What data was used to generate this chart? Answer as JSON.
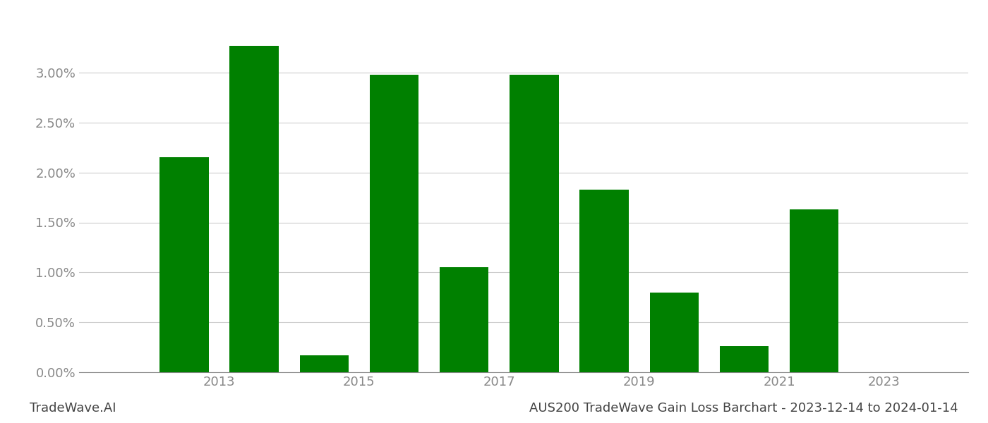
{
  "years": [
    2013,
    2014,
    2015,
    2016,
    2017,
    2018,
    2019,
    2020,
    2021,
    2022,
    2023
  ],
  "values": [
    0.0215,
    0.0327,
    0.0017,
    0.0298,
    0.0105,
    0.0298,
    0.0183,
    0.008,
    0.0026,
    0.0163,
    0.0
  ],
  "bar_color": "#008000",
  "title": "AUS200 TradeWave Gain Loss Barchart - 2023-12-14 to 2024-01-14",
  "watermark": "TradeWave.AI",
  "ylim": [
    0,
    0.036
  ],
  "ytick_values": [
    0.0,
    0.005,
    0.01,
    0.015,
    0.02,
    0.025,
    0.03
  ],
  "grid_color": "#cccccc",
  "background_color": "#ffffff",
  "bar_width": 0.7,
  "title_fontsize": 13,
  "watermark_fontsize": 13,
  "tick_fontsize": 13,
  "tick_color": "#888888",
  "xtick_labels": [
    "2013",
    "2015",
    "2017",
    "2019",
    "2021",
    "2023"
  ],
  "xtick_positions": [
    2013.5,
    2015.5,
    2017.5,
    2019.5,
    2021.5,
    2023
  ]
}
